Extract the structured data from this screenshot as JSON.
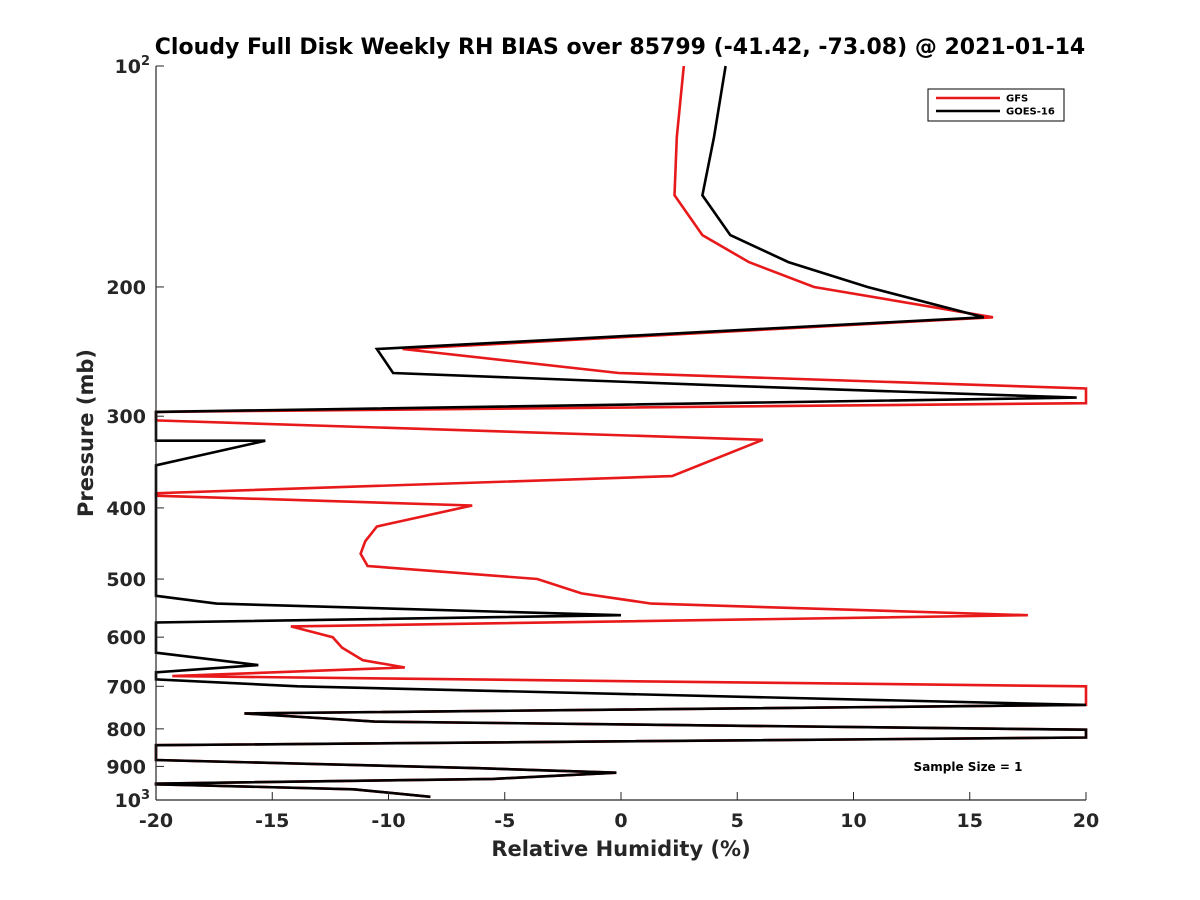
{
  "chart_data": {
    "type": "line",
    "title": "Cloudy Full Disk Weekly RH BIAS over 85799 (-41.42, -73.08) @ 2021-01-14",
    "xlabel": "Relative Humidity (%)",
    "ylabel": "Pressure (mb)",
    "xlim": [
      -20,
      20
    ],
    "ylim": [
      1000,
      100
    ],
    "yscale": "log",
    "grid": false,
    "legend_position": "top-right",
    "x_ticks": [
      {
        "value": -20,
        "label": "-20"
      },
      {
        "value": -15,
        "label": "-15"
      },
      {
        "value": -10,
        "label": "-10"
      },
      {
        "value": -5,
        "label": "-5"
      },
      {
        "value": 0,
        "label": "0"
      },
      {
        "value": 5,
        "label": "5"
      },
      {
        "value": 10,
        "label": "10"
      },
      {
        "value": 15,
        "label": "15"
      },
      {
        "value": 20,
        "label": "20"
      }
    ],
    "y_ticks": [
      {
        "value": 100,
        "base": "10",
        "exp": "2"
      },
      {
        "value": 200,
        "base": "200",
        "exp": ""
      },
      {
        "value": 300,
        "base": "300",
        "exp": ""
      },
      {
        "value": 400,
        "base": "400",
        "exp": ""
      },
      {
        "value": 500,
        "base": "500",
        "exp": ""
      },
      {
        "value": 600,
        "base": "600",
        "exp": ""
      },
      {
        "value": 700,
        "base": "700",
        "exp": ""
      },
      {
        "value": 800,
        "base": "800",
        "exp": ""
      },
      {
        "value": 900,
        "base": "900",
        "exp": ""
      },
      {
        "value": 1000,
        "base": "10",
        "exp": "3"
      }
    ],
    "series": [
      {
        "name": "GFS",
        "color": "#e8191a",
        "x": [
          2.7,
          2.4,
          2.3,
          3.5,
          5.5,
          8.3,
          16.0,
          -9.4,
          -0.1,
          20.0,
          20.0,
          -20.0,
          -20.0,
          6.1,
          2.2,
          -20.0,
          -20.0,
          -6.4,
          -10.5,
          -11.0,
          -11.2,
          -10.9,
          -3.6,
          -1.7,
          1.3,
          17.5,
          -14.2,
          -12.4,
          -12.0,
          -11.1,
          -9.3,
          -19.3,
          20.0,
          20.0,
          -16.2,
          -10.6,
          20.0,
          20.0,
          -20.0,
          -20.0,
          -20.0,
          -6.1,
          -0.2,
          -5.5,
          -20.0,
          -20.0,
          -18.2,
          -11.5,
          -8.2
        ],
        "y": [
          100,
          125,
          150,
          170,
          185,
          200,
          220,
          243,
          262,
          275,
          288,
          296,
          304,
          323,
          362,
          382,
          385,
          397,
          424,
          444,
          462,
          480,
          500,
          523,
          540,
          560,
          580,
          600,
          620,
          645,
          660,
          678,
          700,
          742,
          762,
          782,
          802,
          822,
          842,
          862,
          882,
          905,
          918,
          936,
          950,
          952,
          955,
          967,
          990
        ]
      },
      {
        "name": "GOES-16",
        "color": "#000000",
        "x": [
          4.5,
          4.0,
          3.5,
          4.7,
          7.2,
          10.6,
          15.6,
          -10.5,
          -9.8,
          5.0,
          19.6,
          -20.0,
          -20.0,
          -15.3,
          -18.6,
          -20.0,
          -20.0,
          -17.4,
          0.0,
          -20.0,
          -20.0,
          -15.6,
          -20.0,
          -20.0,
          -13.9,
          20.0,
          20.0,
          -16.2,
          -10.6,
          20.0,
          20.0,
          -20.0,
          -20.0,
          -20.0,
          -6.1,
          -0.2,
          -5.5,
          -20.0,
          -20.0,
          -18.2,
          -11.5,
          -8.2
        ],
        "y": [
          100,
          125,
          150,
          170,
          185,
          200,
          220,
          243,
          262,
          273,
          283,
          296,
          324,
          324,
          342,
          350,
          527,
          540,
          560,
          573,
          630,
          655,
          670,
          685,
          700,
          742,
          742,
          762,
          782,
          802,
          822,
          842,
          862,
          882,
          905,
          918,
          936,
          950,
          952,
          955,
          967,
          990
        ]
      }
    ],
    "annotations": [
      {
        "text": "Sample Size = 1",
        "x": 13.6,
        "y": 902
      }
    ]
  }
}
